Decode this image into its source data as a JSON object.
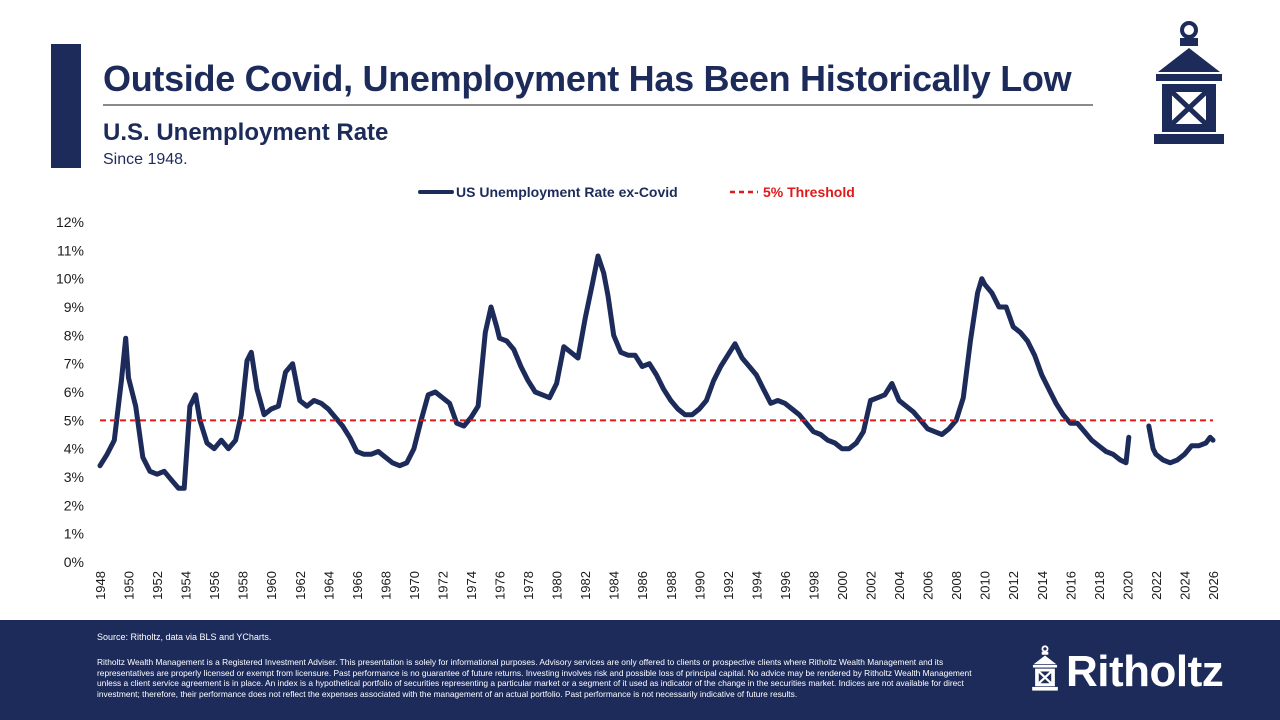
{
  "header": {
    "title": "Outside Covid, Unemployment Has Been Historically Low",
    "subtitle": "U.S. Unemployment Rate",
    "since": "Since 1948."
  },
  "footer": {
    "source": "Source: Ritholtz, data via BLS and YCharts.",
    "disclaimer": "Ritholtz Wealth Management is a Registered Investment Adviser. This presentation is solely for informational purposes. Advisory services are only offered to clients or prospective clients where Ritholtz Wealth Management and its representatives are properly licensed or exempt from licensure. Past performance is no guarantee of future returns. Investing involves risk and possible loss of principal capital. No advice may be rendered by Ritholtz Wealth Management unless a client service agreement is in place. An index is a hypothetical portfolio of securities representing a particular market or a segment of it used as indicator of the change in the securities market. Indices are not available for direct investment; therefore, their performance does not reflect the expenses associated with the management of an actual portfolio. Past performance is not necessarily indicative of future results.",
    "brand": "Ritholtz"
  },
  "colors": {
    "navy": "#1c2b5a",
    "threshold_red": "#e0191b",
    "axis_text": "#1a1a1a"
  },
  "chart_data": {
    "type": "line",
    "legend_position": "top-center",
    "grid": false,
    "xlim": [
      1948,
      2026
    ],
    "ylim": [
      0,
      12
    ],
    "x_ticks": [
      "1948",
      "1950",
      "1952",
      "1954",
      "1956",
      "1958",
      "1960",
      "1962",
      "1964",
      "1966",
      "1968",
      "1970",
      "1972",
      "1974",
      "1976",
      "1978",
      "1980",
      "1982",
      "1984",
      "1986",
      "1988",
      "1990",
      "1992",
      "1994",
      "1996",
      "1998",
      "2000",
      "2002",
      "2004",
      "2006",
      "2008",
      "2010",
      "2012",
      "2014",
      "2016",
      "2018",
      "2020",
      "2022",
      "2024",
      "2026"
    ],
    "y_ticks": [
      "0%",
      "1%",
      "2%",
      "3%",
      "4%",
      "5%",
      "6%",
      "7%",
      "8%",
      "9%",
      "10%",
      "11%",
      "12%"
    ],
    "series": [
      {
        "name": "US Unemployment Rate ex-Covid",
        "color": "#1c2b5a",
        "segments": [
          [
            [
              1948.0,
              3.4
            ],
            [
              1948.5,
              3.8
            ],
            [
              1949.0,
              4.3
            ],
            [
              1949.5,
              6.4
            ],
            [
              1949.8,
              7.9
            ],
            [
              1950.0,
              6.5
            ],
            [
              1950.5,
              5.5
            ],
            [
              1951.0,
              3.7
            ],
            [
              1951.5,
              3.2
            ],
            [
              1952.0,
              3.1
            ],
            [
              1952.5,
              3.2
            ],
            [
              1953.0,
              2.9
            ],
            [
              1953.5,
              2.6
            ],
            [
              1953.9,
              2.6
            ],
            [
              1954.3,
              5.5
            ],
            [
              1954.7,
              5.9
            ],
            [
              1955.0,
              5.0
            ],
            [
              1955.5,
              4.2
            ],
            [
              1956.0,
              4.0
            ],
            [
              1956.5,
              4.3
            ],
            [
              1957.0,
              4.0
            ],
            [
              1957.5,
              4.3
            ],
            [
              1957.9,
              5.2
            ],
            [
              1958.3,
              7.1
            ],
            [
              1958.6,
              7.4
            ],
            [
              1959.0,
              6.1
            ],
            [
              1959.5,
              5.2
            ],
            [
              1960.0,
              5.4
            ],
            [
              1960.5,
              5.5
            ],
            [
              1961.0,
              6.7
            ],
            [
              1961.5,
              7.0
            ],
            [
              1962.0,
              5.7
            ],
            [
              1962.5,
              5.5
            ],
            [
              1963.0,
              5.7
            ],
            [
              1963.5,
              5.6
            ],
            [
              1964.0,
              5.4
            ],
            [
              1964.5,
              5.1
            ],
            [
              1965.0,
              4.8
            ],
            [
              1965.5,
              4.4
            ],
            [
              1966.0,
              3.9
            ],
            [
              1966.5,
              3.8
            ],
            [
              1967.0,
              3.8
            ],
            [
              1967.5,
              3.9
            ],
            [
              1968.0,
              3.7
            ],
            [
              1968.5,
              3.5
            ],
            [
              1969.0,
              3.4
            ],
            [
              1969.5,
              3.5
            ],
            [
              1970.0,
              4.0
            ],
            [
              1970.5,
              5.0
            ],
            [
              1971.0,
              5.9
            ],
            [
              1971.5,
              6.0
            ],
            [
              1972.0,
              5.8
            ],
            [
              1972.5,
              5.6
            ],
            [
              1973.0,
              4.9
            ],
            [
              1973.5,
              4.8
            ],
            [
              1974.0,
              5.1
            ],
            [
              1974.5,
              5.5
            ],
            [
              1975.0,
              8.1
            ],
            [
              1975.4,
              9.0
            ],
            [
              1975.8,
              8.3
            ],
            [
              1976.0,
              7.9
            ],
            [
              1976.5,
              7.8
            ],
            [
              1977.0,
              7.5
            ],
            [
              1977.5,
              6.9
            ],
            [
              1978.0,
              6.4
            ],
            [
              1978.5,
              6.0
            ],
            [
              1979.0,
              5.9
            ],
            [
              1979.5,
              5.8
            ],
            [
              1980.0,
              6.3
            ],
            [
              1980.5,
              7.6
            ],
            [
              1981.0,
              7.4
            ],
            [
              1981.5,
              7.2
            ],
            [
              1982.0,
              8.6
            ],
            [
              1982.5,
              9.8
            ],
            [
              1982.9,
              10.8
            ],
            [
              1983.3,
              10.2
            ],
            [
              1983.6,
              9.4
            ],
            [
              1984.0,
              8.0
            ],
            [
              1984.5,
              7.4
            ],
            [
              1985.0,
              7.3
            ],
            [
              1985.5,
              7.3
            ],
            [
              1986.0,
              6.9
            ],
            [
              1986.5,
              7.0
            ],
            [
              1987.0,
              6.6
            ],
            [
              1987.5,
              6.1
            ],
            [
              1988.0,
              5.7
            ],
            [
              1988.5,
              5.4
            ],
            [
              1989.0,
              5.2
            ],
            [
              1989.5,
              5.2
            ],
            [
              1990.0,
              5.4
            ],
            [
              1990.5,
              5.7
            ],
            [
              1991.0,
              6.4
            ],
            [
              1991.5,
              6.9
            ],
            [
              1992.0,
              7.3
            ],
            [
              1992.5,
              7.7
            ],
            [
              1993.0,
              7.2
            ],
            [
              1993.5,
              6.9
            ],
            [
              1994.0,
              6.6
            ],
            [
              1994.5,
              6.1
            ],
            [
              1995.0,
              5.6
            ],
            [
              1995.5,
              5.7
            ],
            [
              1996.0,
              5.6
            ],
            [
              1996.5,
              5.4
            ],
            [
              1997.0,
              5.2
            ],
            [
              1997.5,
              4.9
            ],
            [
              1998.0,
              4.6
            ],
            [
              1998.5,
              4.5
            ],
            [
              1999.0,
              4.3
            ],
            [
              1999.5,
              4.2
            ],
            [
              2000.0,
              4.0
            ],
            [
              2000.5,
              4.0
            ],
            [
              2001.0,
              4.2
            ],
            [
              2001.5,
              4.6
            ],
            [
              2002.0,
              5.7
            ],
            [
              2002.5,
              5.8
            ],
            [
              2003.0,
              5.9
            ],
            [
              2003.5,
              6.3
            ],
            [
              2004.0,
              5.7
            ],
            [
              2004.5,
              5.5
            ],
            [
              2005.0,
              5.3
            ],
            [
              2005.5,
              5.0
            ],
            [
              2006.0,
              4.7
            ],
            [
              2006.5,
              4.6
            ],
            [
              2007.0,
              4.5
            ],
            [
              2007.5,
              4.7
            ],
            [
              2008.0,
              5.0
            ],
            [
              2008.5,
              5.8
            ],
            [
              2009.0,
              7.8
            ],
            [
              2009.5,
              9.5
            ],
            [
              2009.8,
              10.0
            ],
            [
              2010.0,
              9.8
            ],
            [
              2010.5,
              9.5
            ],
            [
              2011.0,
              9.0
            ],
            [
              2011.5,
              9.0
            ],
            [
              2012.0,
              8.3
            ],
            [
              2012.5,
              8.1
            ],
            [
              2013.0,
              7.8
            ],
            [
              2013.5,
              7.3
            ],
            [
              2014.0,
              6.6
            ],
            [
              2014.5,
              6.1
            ],
            [
              2015.0,
              5.6
            ],
            [
              2015.5,
              5.2
            ],
            [
              2016.0,
              4.9
            ],
            [
              2016.5,
              4.9
            ],
            [
              2017.0,
              4.6
            ],
            [
              2017.5,
              4.3
            ],
            [
              2018.0,
              4.1
            ],
            [
              2018.5,
              3.9
            ],
            [
              2019.0,
              3.8
            ],
            [
              2019.5,
              3.6
            ],
            [
              2019.9,
              3.5
            ],
            [
              2020.1,
              4.4
            ]
          ],
          [
            [
              2021.5,
              4.8
            ],
            [
              2021.8,
              4.0
            ],
            [
              2022.0,
              3.8
            ],
            [
              2022.5,
              3.6
            ],
            [
              2023.0,
              3.5
            ],
            [
              2023.5,
              3.6
            ],
            [
              2024.0,
              3.8
            ],
            [
              2024.5,
              4.1
            ],
            [
              2025.0,
              4.1
            ],
            [
              2025.5,
              4.2
            ],
            [
              2025.8,
              4.4
            ],
            [
              2026.0,
              4.3
            ]
          ]
        ]
      },
      {
        "name": "5% Threshold",
        "color": "#e0191b",
        "value": 5
      }
    ]
  }
}
